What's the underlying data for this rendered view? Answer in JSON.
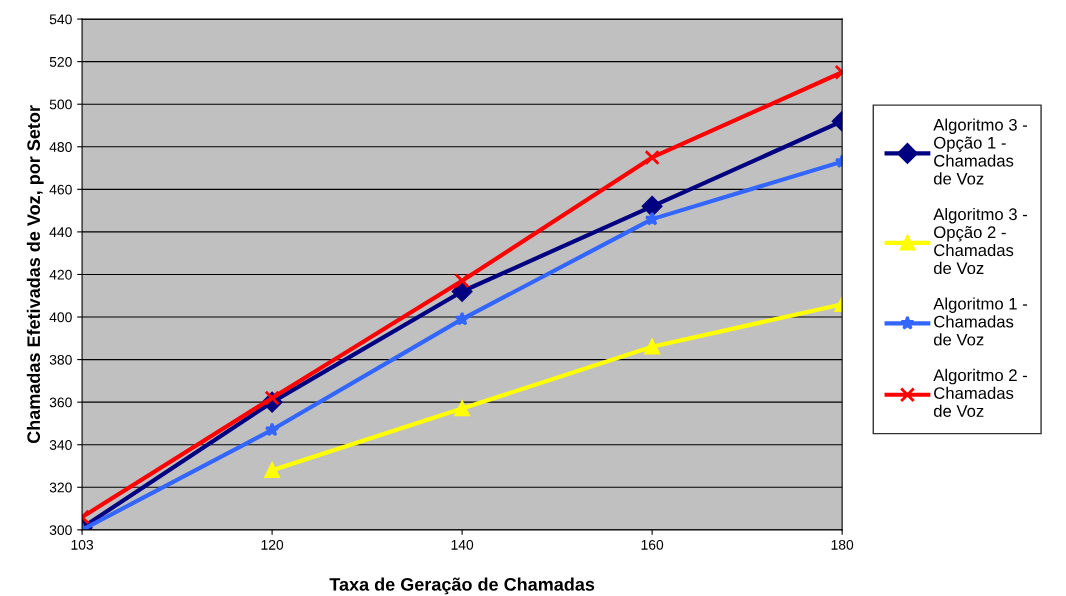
{
  "chart_data": {
    "type": "line",
    "xlabel": "Taxa de Geração de Chamadas",
    "ylabel": "Chamadas Efetivadas de Voz, por Setor",
    "categories": [
      "103",
      "120",
      "140",
      "160",
      "180"
    ],
    "series": [
      {
        "name": "Algoritmo 3 -\nOpção 1 -\nChamadas\nde Voz",
        "color": "#000080",
        "marker": "diamond",
        "values": [
          301,
          360,
          412,
          452,
          492
        ]
      },
      {
        "name": "Algoritmo 3 -\nOpção 2 -\nChamadas\nde Voz",
        "color": "#ffff00",
        "marker": "triangle",
        "values": [
          null,
          328,
          357,
          386,
          406
        ]
      },
      {
        "name": "Algoritmo 1 -\nChamadas\nde Voz",
        "color": "#3366ff",
        "marker": "star",
        "values": [
          300,
          347,
          399,
          446,
          473
        ]
      },
      {
        "name": "Algoritmo 2 -\nChamadas\nde Voz",
        "color": "#ff0000",
        "marker": "cross",
        "values": [
          306,
          362,
          417,
          475,
          515
        ]
      }
    ],
    "ylim": [
      300,
      540
    ],
    "yticks": [
      300,
      320,
      340,
      360,
      380,
      400,
      420,
      440,
      460,
      480,
      500,
      520,
      540
    ],
    "grid": "y",
    "legend": "right"
  }
}
